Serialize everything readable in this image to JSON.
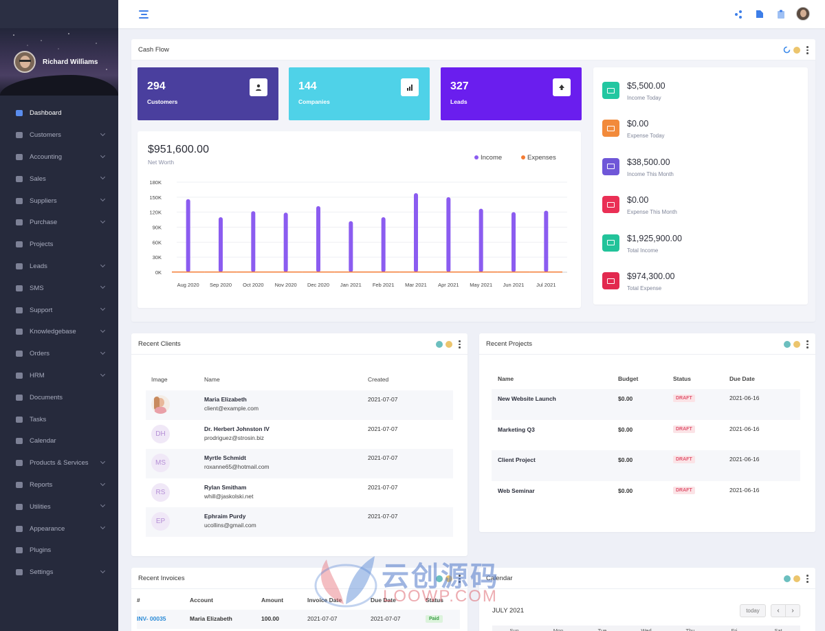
{
  "user": {
    "name": "Richard Williams"
  },
  "sidebar": {
    "items": [
      {
        "label": "Dashboard",
        "icon": "bar-chart-icon",
        "active": true,
        "chevron": false
      },
      {
        "label": "Customers",
        "icon": "user-icon",
        "chevron": true
      },
      {
        "label": "Accounting",
        "icon": "calculator-icon",
        "chevron": true
      },
      {
        "label": "Sales",
        "icon": "sales-icon",
        "chevron": true
      },
      {
        "label": "Suppliers",
        "icon": "suppliers-icon",
        "chevron": true
      },
      {
        "label": "Purchase",
        "icon": "purchase-icon",
        "chevron": true
      },
      {
        "label": "Projects",
        "icon": "cube-icon",
        "chevron": false
      },
      {
        "label": "Leads",
        "icon": "leads-icon",
        "chevron": true
      },
      {
        "label": "SMS",
        "icon": "mail-icon",
        "chevron": true
      },
      {
        "label": "Support",
        "icon": "support-icon",
        "chevron": true
      },
      {
        "label": "Knowledgebase",
        "icon": "book-icon",
        "chevron": true
      },
      {
        "label": "Orders",
        "icon": "orders-icon",
        "chevron": true
      },
      {
        "label": "HRM",
        "icon": "hrm-icon",
        "chevron": true
      },
      {
        "label": "Documents",
        "icon": "folder-icon",
        "chevron": false
      },
      {
        "label": "Tasks",
        "icon": "list-icon",
        "chevron": false
      },
      {
        "label": "Calendar",
        "icon": "clock-icon",
        "chevron": false
      },
      {
        "label": "Products & Services",
        "icon": "products-icon",
        "chevron": true
      },
      {
        "label": "Reports",
        "icon": "reports-icon",
        "chevron": true
      },
      {
        "label": "Utilities",
        "icon": "command-icon",
        "chevron": true
      },
      {
        "label": "Appearance",
        "icon": "appearance-icon",
        "chevron": true
      },
      {
        "label": "Plugins",
        "icon": "plug-icon",
        "chevron": false
      },
      {
        "label": "Settings",
        "icon": "gear-icon",
        "chevron": true
      }
    ]
  },
  "cashflow": {
    "title": "Cash Flow",
    "stats": [
      {
        "value": "294",
        "label": "Customers",
        "color": "#4a3f9e",
        "icon": "user-icon"
      },
      {
        "value": "144",
        "label": "Companies",
        "color": "#4fd2e8",
        "icon": "signal-icon"
      },
      {
        "value": "327",
        "label": "Leads",
        "color": "#6a1eee",
        "icon": "arrow-up-icon"
      }
    ],
    "net_worth": {
      "value": "$951,600.00",
      "label": "Net Worth"
    },
    "income_list": [
      {
        "value": "$5,500.00",
        "label": "Income Today",
        "color": "#22c7a1"
      },
      {
        "value": "$0.00",
        "label": "Expense Today",
        "color": "#f28a3b"
      },
      {
        "value": "$38,500.00",
        "label": "Income This Month",
        "color": "#6f57d8"
      },
      {
        "value": "$0.00",
        "label": "Expense This Month",
        "color": "#ea2f55"
      },
      {
        "value": "$1,925,900.00",
        "label": "Total Income",
        "color": "#22c39a"
      },
      {
        "value": "$974,300.00",
        "label": "Total Expense",
        "color": "#e2294f"
      }
    ]
  },
  "chart_data": {
    "type": "bar",
    "categories": [
      "Aug 2020",
      "Sep 2020",
      "Oct 2020",
      "Nov 2020",
      "Dec 2020",
      "Jan 2021",
      "Feb 2021",
      "Mar 2021",
      "Apr 2021",
      "May 2021",
      "Jun 2021",
      "Jul 2021"
    ],
    "series": [
      {
        "name": "Income",
        "color": "#8b5cf0",
        "values": [
          146000,
          110000,
          122000,
          119000,
          132000,
          102000,
          110000,
          158000,
          150000,
          127000,
          120000,
          123000
        ]
      },
      {
        "name": "Expenses",
        "color": "#f47c34",
        "values": [
          0,
          0,
          0,
          0,
          0,
          0,
          0,
          0,
          0,
          0,
          0,
          0
        ]
      }
    ],
    "yticks": [
      "180K",
      "150K",
      "120K",
      "90K",
      "60K",
      "30K",
      "0K"
    ],
    "ylim": [
      0,
      180000
    ],
    "legend": "top-right",
    "grid": true
  },
  "recent_clients": {
    "title": "Recent Clients",
    "columns": [
      "Image",
      "Name",
      "Created"
    ],
    "rows": [
      {
        "initials": "",
        "photo": true,
        "name": "Maria Elizabeth",
        "email": "client@example.com",
        "created": "2021-07-07"
      },
      {
        "initials": "DH",
        "name": "Dr. Herbert Johnston IV",
        "email": "prodriguez@strosin.biz",
        "created": "2021-07-07"
      },
      {
        "initials": "MS",
        "name": "Myrtle Schmidt",
        "email": "roxanne65@hotmail.com",
        "created": "2021-07-07"
      },
      {
        "initials": "RS",
        "name": "Rylan Smitham",
        "email": "whill@jaskolski.net",
        "created": "2021-07-07"
      },
      {
        "initials": "EP",
        "name": "Ephraim Purdy",
        "email": "ucollins@gmail.com",
        "created": "2021-07-07"
      }
    ]
  },
  "recent_projects": {
    "title": "Recent Projects",
    "columns": [
      "Name",
      "Budget",
      "Status",
      "Due Date"
    ],
    "rows": [
      {
        "name": "New Website Launch",
        "budget": "$0.00",
        "status": "DRAFT",
        "due": "2021-06-16"
      },
      {
        "name": "Marketing Q3",
        "budget": "$0.00",
        "status": "DRAFT",
        "due": "2021-06-16"
      },
      {
        "name": "Client Project",
        "budget": "$0.00",
        "status": "DRAFT",
        "due": "2021-06-16"
      },
      {
        "name": "Web Seminar",
        "budget": "$0.00",
        "status": "DRAFT",
        "due": "2021-06-16"
      }
    ]
  },
  "recent_invoices": {
    "title": "Recent Invoices",
    "columns": [
      "#",
      "Account",
      "Amount",
      "Invoice Date",
      "Due Date",
      "Status"
    ],
    "rows": [
      {
        "id": "INV- 00035",
        "account": "Maria Elizabeth",
        "amount": "100.00",
        "invoice_date": "2021-07-07",
        "due_date": "2021-07-07",
        "status": "Paid"
      }
    ]
  },
  "calendar": {
    "title": "Calendar",
    "month": "JULY 2021",
    "today_label": "today",
    "days": [
      "Sun",
      "Mon",
      "Tue",
      "Wed",
      "Thu",
      "Fri",
      "Sat"
    ]
  },
  "watermark": {
    "text": "云创源码",
    "sub": "LOOWP.COM"
  }
}
